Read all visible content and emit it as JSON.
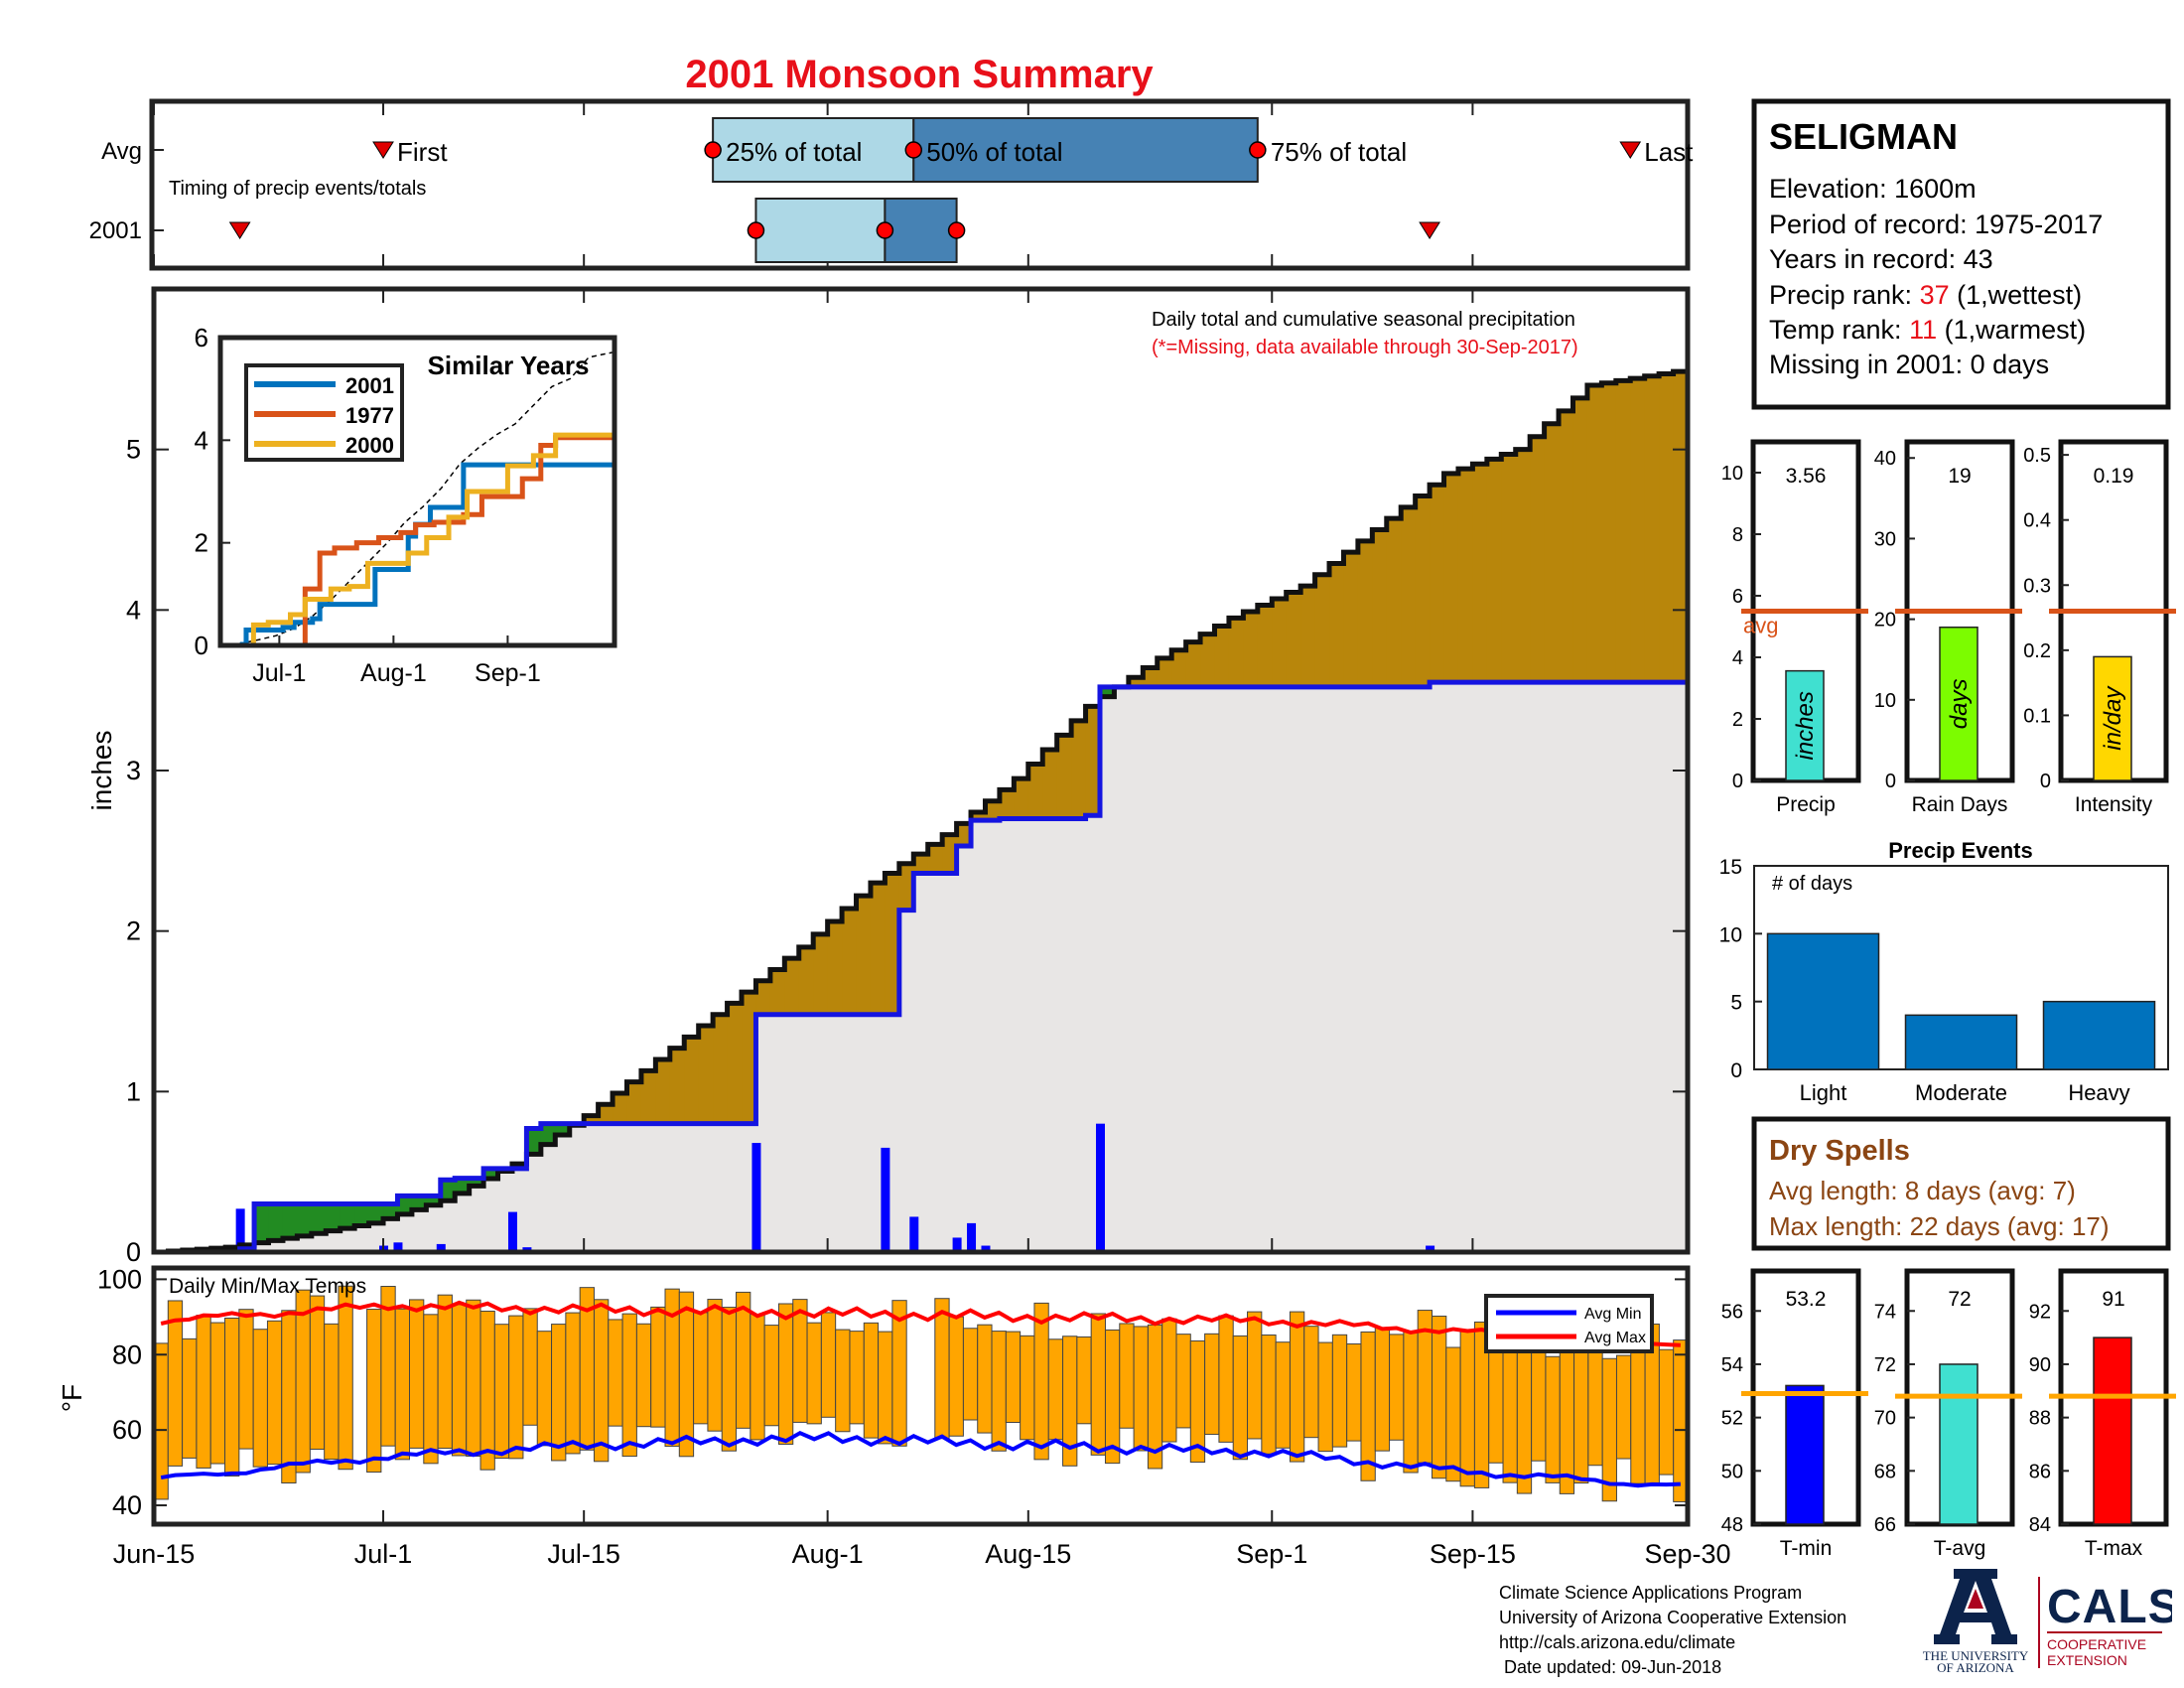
{
  "title": "2001 Monsoon Summary",
  "colors": {
    "title": "#e8101a",
    "light_blue": "#add8e6",
    "steel_blue": "#4682b4",
    "cumulative_fill_above": "#b8860b",
    "cumulative_fill_below": "#228b22",
    "daily_bar": "#0000ff",
    "temp_bar": "#ffa500",
    "avg_line": "#d95319",
    "avg_min": "#0000ff",
    "avg_max": "#ff0000",
    "precip_bar": "#40e0d0",
    "raindays_bar": "#7cfc00",
    "intensity_bar": "#ffd700",
    "events_bar": "#0072bd",
    "tmin_bar": "#0000ff",
    "tavg_bar": "#40e0d0",
    "tmax_bar": "#ff0000",
    "temp_avg_line": "#ffa500",
    "dry_spells": "#8b4513"
  },
  "timing": {
    "row_avg": "Avg",
    "row_year": "2001",
    "subtitle": "Timing of precip events/totals",
    "first_label": "First",
    "q25_label": "25% of total",
    "q50_label": "50% of total",
    "q75_label": "75% of total",
    "last_label": "Last",
    "avg_dates": {
      "first": "2001-07-01",
      "q25": "2001-07-24",
      "q50": "2001-08-07",
      "q75": "2001-08-31",
      "last": "2001-09-26"
    },
    "year_dates": {
      "first": "2001-06-21",
      "q25": "2001-07-27",
      "q50": "2001-08-05",
      "q75": "2001-08-10",
      "last": "2001-09-12"
    }
  },
  "main": {
    "ylabel": "inches",
    "note_line1": "Daily total and cumulative seasonal precipitation",
    "note_line2": "(*=Missing, data available through 30-Sep-2017)",
    "ylim": [
      0,
      6
    ],
    "yticks": [
      "0",
      "1",
      "2",
      "3",
      "4",
      "5"
    ],
    "xticks": [
      "Jun-15",
      "Jul-1",
      "Jul-15",
      "Aug-1",
      "Aug-15",
      "Sep-1",
      "Sep-15",
      "Sep-30"
    ]
  },
  "inset": {
    "title": "Similar Years",
    "legend": [
      "2001",
      "1977",
      "2000"
    ],
    "yticks": [
      "0",
      "2",
      "4",
      "6"
    ],
    "xticks": [
      "Jul-1",
      "Aug-1",
      "Sep-1"
    ]
  },
  "temps": {
    "title": "Daily Min/Max Temps",
    "ylabel": "°F",
    "yticks": [
      "40",
      "60",
      "80",
      "100"
    ],
    "legend_min": "Avg Min",
    "legend_max": "Avg Max"
  },
  "station": {
    "name": "SELIGMAN",
    "elevation": "Elevation: 1600m",
    "period": "Period of record: 1975-2017",
    "years": "Years in record: 43",
    "precip_rank_prefix": "Precip rank: ",
    "precip_rank_value": "37",
    "precip_rank_suffix": " (1,wettest)",
    "temp_rank_prefix": "Temp rank: ",
    "temp_rank_value": "11",
    "temp_rank_suffix": " (1,warmest)",
    "missing": "Missing in 2001: 0 days"
  },
  "mini": {
    "precip": {
      "value_label": "3.56",
      "value": 3.56,
      "avg": 5.5,
      "ymax": 11,
      "yticks": [
        "0",
        "2",
        "4",
        "6",
        "8",
        "10"
      ],
      "inner": "inches",
      "label": "Precip",
      "avg_label": "avg"
    },
    "raindays": {
      "value_label": "19",
      "value": 19,
      "avg": 21,
      "ymax": 42,
      "yticks": [
        "0",
        "10",
        "20",
        "30",
        "40"
      ],
      "inner": "days",
      "label": "Rain Days"
    },
    "intensity": {
      "value_label": "0.19",
      "value": 0.19,
      "avg": 0.26,
      "ymax": 0.52,
      "yticks": [
        "0",
        "0.1",
        "0.2",
        "0.3",
        "0.4",
        "0.5"
      ],
      "inner": "in/day",
      "label": "Intensity"
    }
  },
  "events": {
    "title": "Precip Events",
    "ylabel": "# of days",
    "categories": [
      "Light",
      "Moderate",
      "Heavy"
    ],
    "values": [
      10,
      4,
      5
    ],
    "yticks": [
      "0",
      "5",
      "10",
      "15"
    ]
  },
  "dry_spells": {
    "title": "Dry Spells",
    "avg": "Avg length: 8 days (avg: 7)",
    "max": "Max length: 22 days (avg: 17)"
  },
  "temp_minis": {
    "tmin": {
      "value_label": "53.2",
      "value": 53.2,
      "avg": 52.9,
      "ylim": [
        48,
        57.5
      ],
      "yticks": [
        "48",
        "50",
        "52",
        "54",
        "56"
      ],
      "label": "T-min"
    },
    "tavg": {
      "value_label": "72",
      "value": 72,
      "avg": 70.8,
      "ylim": [
        66,
        75.5
      ],
      "yticks": [
        "66",
        "68",
        "70",
        "72",
        "74"
      ],
      "label": "T-avg"
    },
    "tmax": {
      "value_label": "91",
      "value": 91,
      "avg": 88.8,
      "ylim": [
        84,
        93.5
      ],
      "yticks": [
        "84",
        "86",
        "88",
        "90",
        "92"
      ],
      "label": "T-max"
    }
  },
  "footer": {
    "line1": "Climate Science Applications Program",
    "line2": "University of Arizona Cooperative Extension",
    "line3": "http://cals.arizona.edu/climate",
    "line4": " Date updated: 09-Jun-2018"
  },
  "logos": {
    "ua_line1": "THE UNIVERSITY",
    "ua_line2": "OF ARIZONA",
    "cals": "CALS",
    "cals_line1": "COOPERATIVE",
    "cals_line2": "EXTENSION"
  },
  "chart_data": [
    {
      "type": "line",
      "title": "Daily total and cumulative seasonal precipitation",
      "ylabel": "inches",
      "ylim": [
        0,
        6
      ],
      "x_range": [
        "2001-06-15",
        "2001-09-30"
      ],
      "series": [
        {
          "name": "2001",
          "note": "cumulative seasonal precipitation 2001 (blue step line)",
          "x": [
            "2001-06-15",
            "2001-06-21",
            "2001-06-22",
            "2001-07-01",
            "2001-07-02",
            "2001-07-05",
            "2001-07-06",
            "2001-07-08",
            "2001-07-10",
            "2001-07-11",
            "2001-07-12",
            "2001-07-27",
            "2001-08-05",
            "2001-08-06",
            "2001-08-07",
            "2001-08-08",
            "2001-08-10",
            "2001-08-11",
            "2001-08-12",
            "2001-08-13",
            "2001-08-14",
            "2001-08-19",
            "2001-08-20",
            "2001-09-12",
            "2001-09-30"
          ],
          "y": [
            0.0,
            0.02,
            0.3,
            0.3,
            0.35,
            0.45,
            0.46,
            0.52,
            0.52,
            0.77,
            0.8,
            1.48,
            1.48,
            2.13,
            2.36,
            2.36,
            2.53,
            2.69,
            2.69,
            2.7,
            2.7,
            2.72,
            3.52,
            3.55,
            3.56
          ]
        },
        {
          "name": "average",
          "note": "average cumulative precipitation (black step line)",
          "x": [
            "2001-06-15",
            "2001-06-20",
            "2001-06-25",
            "2001-06-30",
            "2001-07-05",
            "2001-07-10",
            "2001-07-15",
            "2001-07-20",
            "2001-07-25",
            "2001-07-30",
            "2001-08-04",
            "2001-08-09",
            "2001-08-14",
            "2001-08-19",
            "2001-08-24",
            "2001-08-29",
            "2001-09-03",
            "2001-09-08",
            "2001-09-13",
            "2001-09-18",
            "2001-09-23",
            "2001-09-30"
          ],
          "y": [
            0.0,
            0.03,
            0.1,
            0.18,
            0.32,
            0.55,
            0.85,
            1.2,
            1.55,
            1.9,
            2.3,
            2.6,
            2.95,
            3.4,
            3.7,
            3.95,
            4.15,
            4.5,
            4.85,
            5.0,
            5.4,
            5.5
          ]
        }
      ],
      "daily_precip": {
        "x": [
          "2001-06-21",
          "2001-07-01",
          "2001-07-02",
          "2001-07-05",
          "2001-07-10",
          "2001-07-11",
          "2001-07-27",
          "2001-08-05",
          "2001-08-07",
          "2001-08-10",
          "2001-08-11",
          "2001-08-12",
          "2001-08-19",
          "2001-08-20",
          "2001-09-12"
        ],
        "y": [
          0.27,
          0.04,
          0.06,
          0.05,
          0.25,
          0.03,
          0.68,
          0.65,
          0.22,
          0.09,
          0.18,
          0.04,
          0.01,
          0.8,
          0.04
        ]
      }
    },
    {
      "type": "line",
      "title": "Similar Years",
      "ylim": [
        0,
        6
      ],
      "series": [
        {
          "name": "2001",
          "x": [
            "2001-06-15",
            "2001-06-21",
            "2001-06-22",
            "2001-07-02",
            "2001-07-05",
            "2001-07-10",
            "2001-07-12",
            "2001-07-27",
            "2001-08-05",
            "2001-08-07",
            "2001-08-11",
            "2001-08-20",
            "2001-09-30"
          ],
          "y": [
            0,
            0.02,
            0.3,
            0.35,
            0.45,
            0.52,
            0.8,
            1.48,
            2.13,
            2.36,
            2.69,
            3.52,
            3.56
          ]
        },
        {
          "name": "1977",
          "y_note": "cumulative inches (approx)",
          "x": [
            "2001-06-15",
            "2001-07-05",
            "2001-07-08",
            "2001-07-12",
            "2001-07-16",
            "2001-07-22",
            "2001-07-28",
            "2001-08-03",
            "2001-08-07",
            "2001-08-12",
            "2001-08-20",
            "2001-08-25",
            "2001-09-05",
            "2001-09-10",
            "2001-09-14",
            "2001-09-30"
          ],
          "y": [
            0,
            0,
            1.1,
            1.8,
            1.9,
            2.0,
            2.1,
            2.2,
            2.35,
            2.4,
            2.55,
            2.9,
            3.25,
            3.9,
            4.05,
            4.3
          ]
        },
        {
          "name": "2000",
          "x": [
            "2001-06-15",
            "2001-06-24",
            "2001-06-28",
            "2001-07-04",
            "2001-07-08",
            "2001-07-15",
            "2001-07-20",
            "2001-07-25",
            "2001-08-05",
            "2001-08-10",
            "2001-08-16",
            "2001-08-21",
            "2001-09-01",
            "2001-09-08",
            "2001-09-14",
            "2001-09-30"
          ],
          "y": [
            0,
            0.4,
            0.45,
            0.6,
            0.9,
            1.1,
            1.15,
            1.6,
            1.8,
            2.1,
            2.5,
            3.0,
            3.5,
            3.7,
            4.1,
            4.2
          ]
        }
      ]
    },
    {
      "type": "bar",
      "title": "Daily Min/Max Temps",
      "ylabel": "°F",
      "ylim": [
        35,
        103
      ],
      "x_range": [
        "2001-06-15",
        "2001-09-30"
      ],
      "avg_min": {
        "x": [
          "2001-06-15",
          "2001-07-01",
          "2001-07-15",
          "2001-08-01",
          "2001-08-15",
          "2001-09-01",
          "2001-09-15",
          "2001-09-30"
        ],
        "y": [
          47,
          53,
          56,
          58,
          56,
          54,
          49,
          45
        ]
      },
      "avg_max": {
        "x": [
          "2001-06-15",
          "2001-07-01",
          "2001-07-15",
          "2001-08-01",
          "2001-08-15",
          "2001-09-01",
          "2001-09-15",
          "2001-09-30"
        ],
        "y": [
          89,
          93,
          92,
          91,
          90,
          89,
          86,
          83
        ]
      },
      "bar_note": "daily bars spanning min to max temperature, one per day"
    },
    {
      "type": "bar",
      "title": "Precip Events",
      "categories": [
        "Light",
        "Moderate",
        "Heavy"
      ],
      "values": [
        10,
        4,
        5
      ],
      "ylim": [
        0,
        15
      ]
    },
    {
      "type": "bar",
      "categories": [
        "Precip",
        "Rain Days",
        "Intensity"
      ],
      "values": [
        3.56,
        19,
        0.19
      ],
      "averages": [
        5.5,
        21,
        0.26
      ]
    },
    {
      "type": "bar",
      "categories": [
        "T-min",
        "T-avg",
        "T-max"
      ],
      "values": [
        53.2,
        72,
        91
      ],
      "averages": [
        52.9,
        70.8,
        88.8
      ]
    }
  ]
}
